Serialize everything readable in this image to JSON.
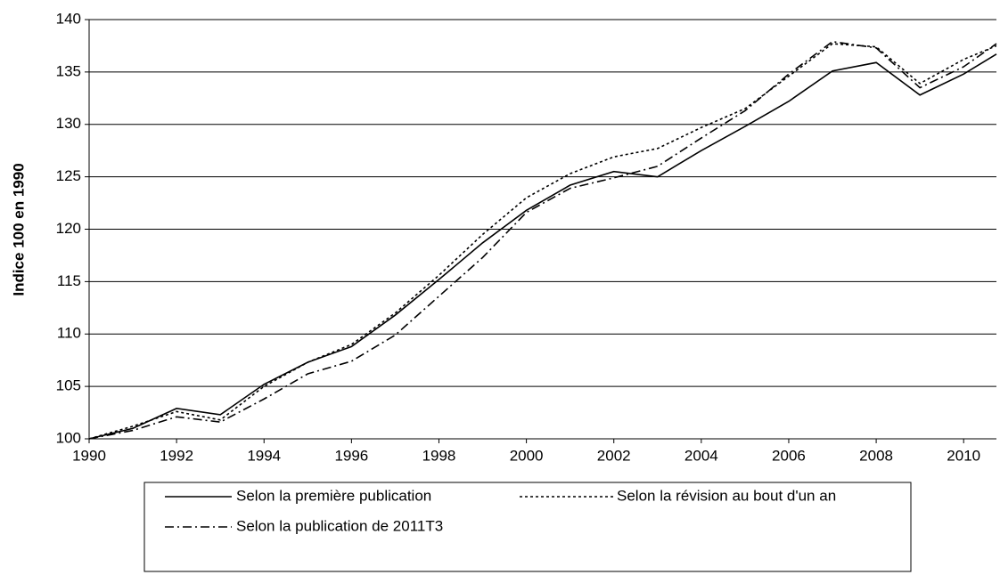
{
  "chart_data": {
    "type": "line",
    "y_label": "Indice 100 en 1990",
    "x": [
      1990,
      1991,
      1992,
      1993,
      1994,
      1995,
      1996,
      1997,
      1998,
      1999,
      2000,
      2001,
      2002,
      2003,
      2004,
      2005,
      2006,
      2007,
      2008,
      2009,
      2010,
      2010.75
    ],
    "series": [
      {
        "name": "Selon la première publication",
        "color": "#000000",
        "dash": "none",
        "values": [
          100,
          101,
          102.9,
          102.3,
          105.2,
          107.3,
          108.8,
          111.8,
          115.2,
          118.7,
          121.8,
          124.2,
          125.5,
          125,
          127.5,
          129.8,
          132.2,
          135.1,
          135.9,
          132.8,
          134.8,
          136.7
        ]
      },
      {
        "name": "Selon la révision au bout d'un an",
        "color": "#000000",
        "dash": "3,3",
        "values": [
          100,
          101.2,
          102.6,
          101.8,
          105,
          107.3,
          109,
          112,
          115.6,
          119.5,
          123,
          125.3,
          126.9,
          127.7,
          129.7,
          131.5,
          134.6,
          137.7,
          137.4,
          133.9,
          136.2,
          137.5
        ]
      },
      {
        "name": "Selon la publication de 2011T3",
        "color": "#000000",
        "dash": "10,4,2,4",
        "values": [
          100,
          100.8,
          102.1,
          101.6,
          103.8,
          106.2,
          107.4,
          109.9,
          113.6,
          117.3,
          121.6,
          123.9,
          124.9,
          126,
          128.7,
          131.3,
          134.8,
          137.9,
          137.3,
          133.5,
          135.5,
          137.7
        ]
      }
    ],
    "xlim": [
      1990,
      2010.75
    ],
    "xticks": [
      1990,
      1992,
      1994,
      1996,
      1998,
      2000,
      2002,
      2004,
      2006,
      2008,
      2010
    ],
    "ylim": [
      100,
      140
    ],
    "yticks": [
      100,
      105,
      110,
      115,
      120,
      125,
      130,
      135,
      140
    ],
    "grid": true,
    "legend": "bottom"
  }
}
